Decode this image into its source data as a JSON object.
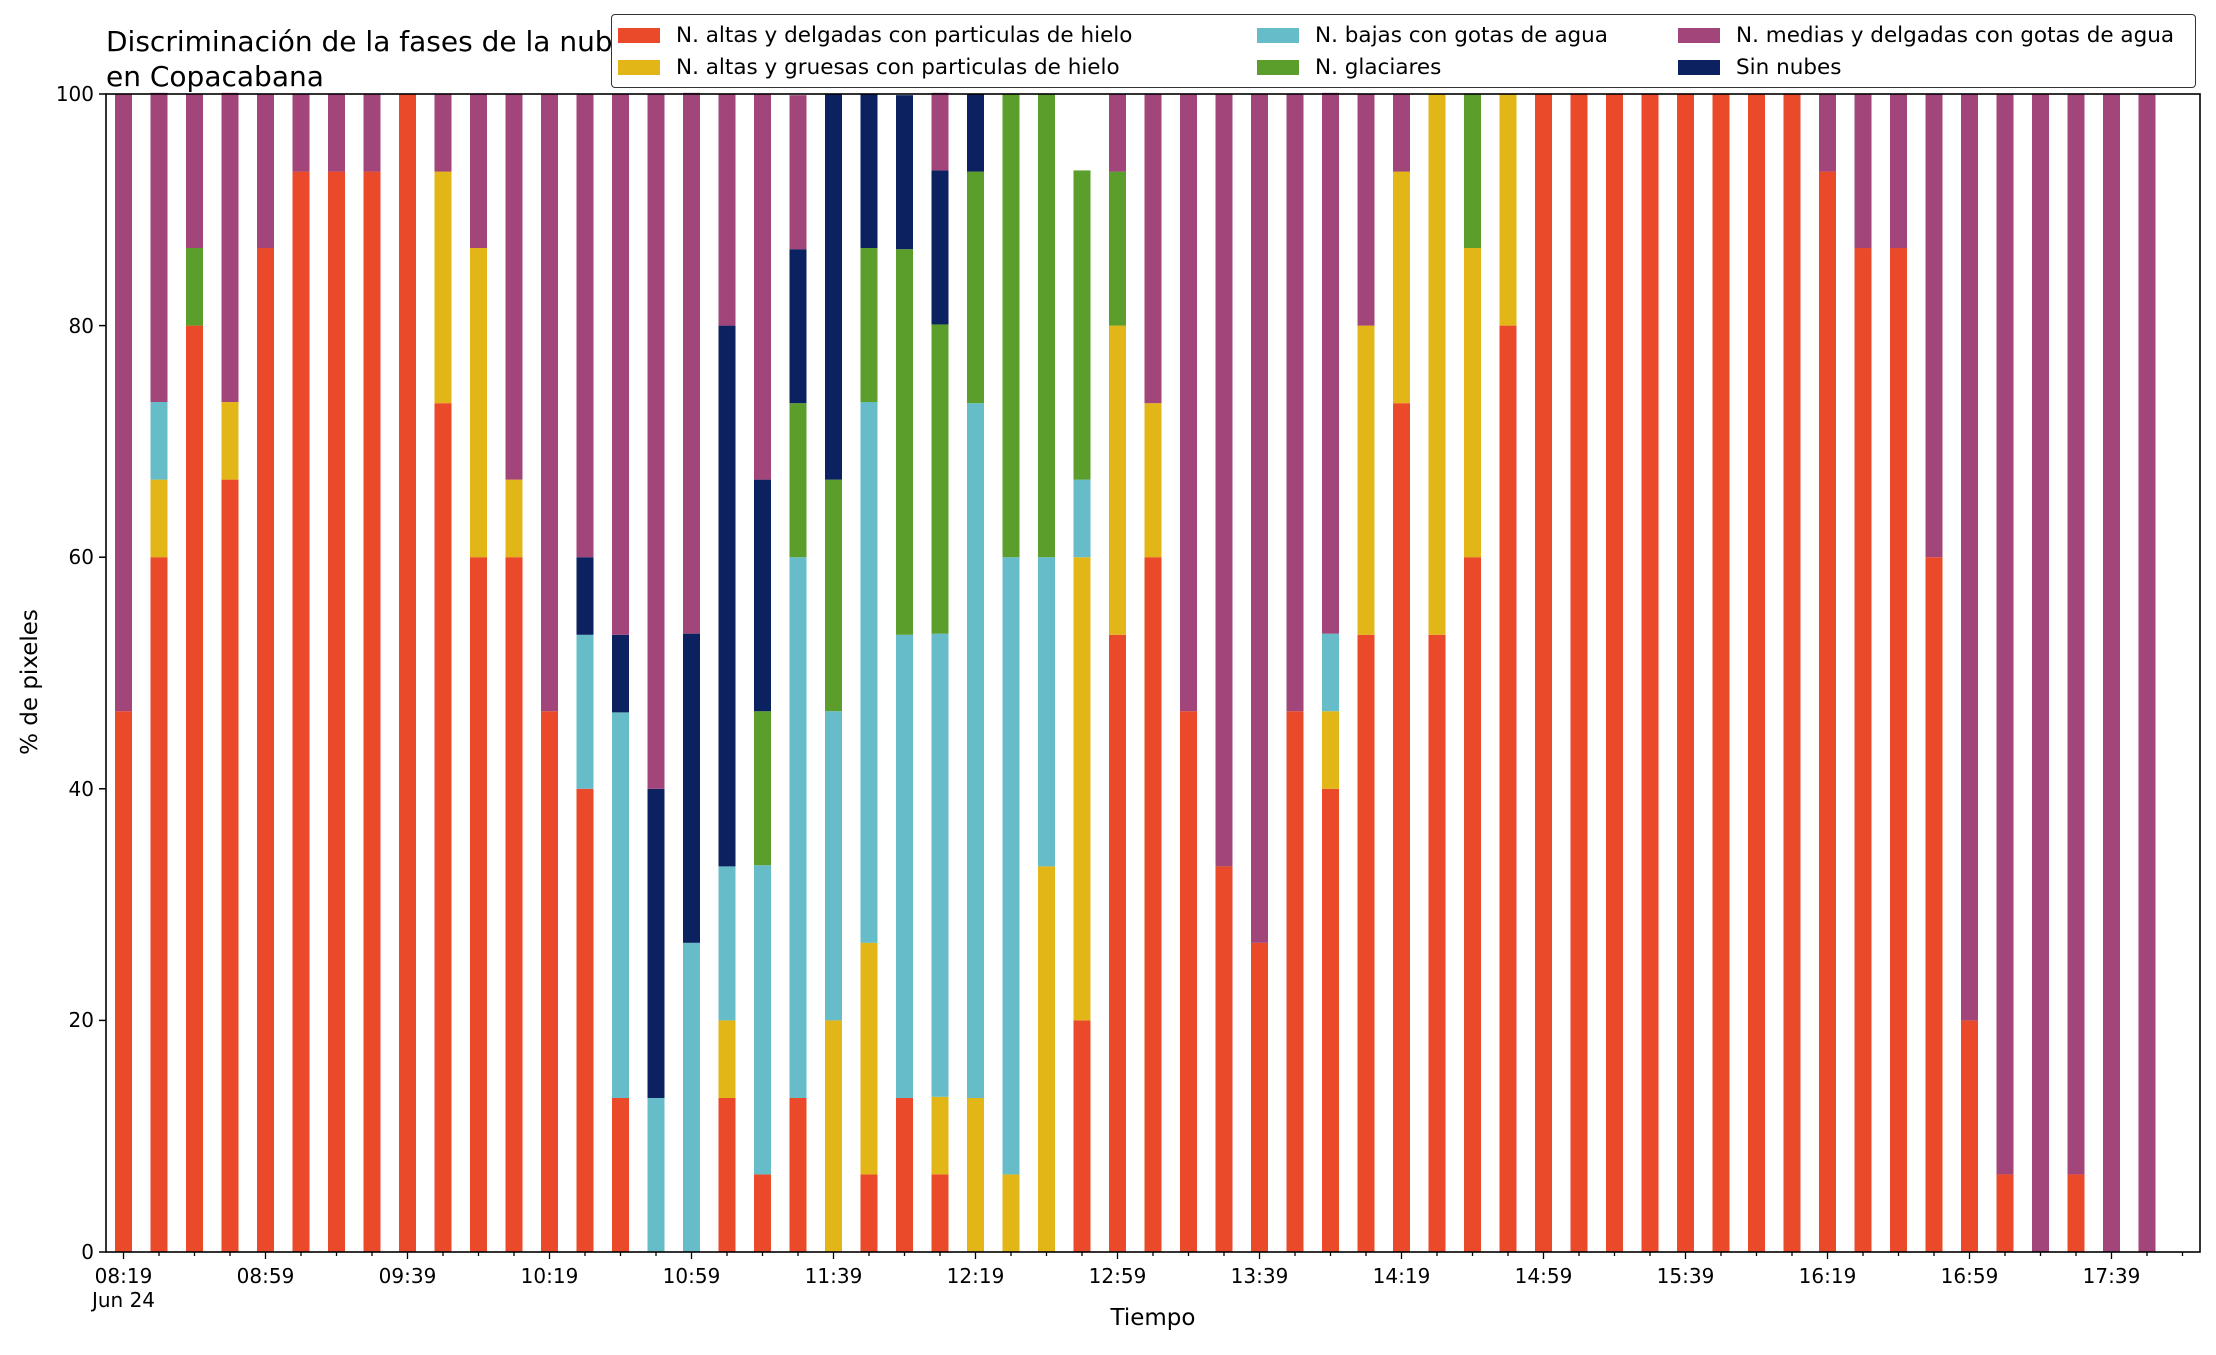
{
  "chart_data": {
    "type": "bar",
    "stacked": true,
    "title": "Discriminación de la fases de la nube en Copacabana",
    "xlabel": "Tiempo",
    "ylabel": "% de pixeles",
    "ylim": [
      0,
      100
    ],
    "yticks": [
      "0",
      "20",
      "40",
      "60",
      "80",
      "100"
    ],
    "x_tick_labels": [
      "08:19",
      "08:59",
      "09:39",
      "10:19",
      "10:59",
      "11:39",
      "12:19",
      "12:59",
      "13:39",
      "14:19",
      "14:59",
      "15:39",
      "16:19",
      "16:59",
      "17:39"
    ],
    "x_tick_sublabel": "Jun 24",
    "x_start": "08:19",
    "x_step_minutes": 10,
    "legend_position": "top",
    "series": [
      {
        "name": "N. altas y delgadas con particulas de hielo",
        "color": "#ea4a2a",
        "values": [
          46.7,
          60,
          80,
          66.7,
          86.7,
          93.3,
          93.3,
          93.3,
          100,
          73.3,
          60,
          60,
          46.7,
          40,
          13.3,
          0,
          0,
          13.3,
          6.7,
          13.3,
          0,
          6.7,
          13.3,
          6.7,
          0,
          0,
          0,
          20,
          53.3,
          60,
          46.7,
          33.3,
          26.7,
          46.7,
          40,
          53.3,
          73.3,
          53.3,
          60,
          80,
          100,
          100,
          100,
          100,
          100,
          100,
          100,
          100,
          93.3,
          86.7,
          86.7,
          60,
          20,
          6.7,
          0,
          6.7,
          0,
          0
        ]
      },
      {
        "name": "N. altas y gruesas con particulas de hielo",
        "color": "#e3b617",
        "values": [
          0,
          6.7,
          0,
          6.7,
          0,
          0,
          0,
          0,
          0,
          20,
          26.7,
          6.7,
          0,
          0,
          0,
          0,
          0,
          6.7,
          0,
          0,
          20,
          20,
          0,
          6.7,
          13.3,
          6.7,
          33.3,
          40,
          26.7,
          13.3,
          0,
          0,
          0,
          0,
          6.7,
          26.7,
          20,
          46.7,
          26.7,
          20,
          0,
          0,
          0,
          0,
          0,
          0,
          0,
          0,
          0,
          0,
          0,
          0,
          0,
          0,
          0,
          0,
          0,
          0
        ]
      },
      {
        "name": "N. bajas con gotas de agua",
        "color": "#66bcc9",
        "values": [
          0,
          6.7,
          0,
          0,
          0,
          0,
          0,
          0,
          0,
          0,
          0,
          0,
          0,
          13.3,
          33.3,
          13.3,
          26.7,
          13.3,
          26.7,
          46.7,
          26.7,
          46.7,
          40,
          40,
          60,
          53.3,
          26.7,
          6.7,
          0,
          0,
          0,
          0,
          0,
          0,
          6.7,
          0,
          0,
          0,
          0,
          0,
          0,
          0,
          0,
          0,
          0,
          0,
          0,
          0,
          0,
          0,
          0,
          0,
          0,
          0,
          0,
          0,
          0,
          0
        ]
      },
      {
        "name": "N. medias y delgadas con gotas de agua",
        "color": "#a2457a",
        "values": [
          53.3,
          26.7,
          13.3,
          26.7,
          13.3,
          6.7,
          6.7,
          6.7,
          0,
          6.7,
          13.3,
          33.3,
          53.3,
          40,
          46.7,
          60,
          46.7,
          20,
          33.3,
          13.3,
          0,
          0,
          0,
          6.7,
          0,
          0,
          0,
          0,
          6.7,
          26.7,
          53.3,
          66.7,
          73.3,
          53.3,
          46.7,
          20,
          6.7,
          0,
          0,
          0,
          0,
          0,
          0,
          0,
          0,
          0,
          0,
          0,
          6.7,
          13.3,
          13.3,
          40,
          80,
          93.3,
          100,
          93.3,
          100,
          100
        ]
      },
      {
        "name": "N. glaciares",
        "color": "#5b9e2c",
        "values": [
          0,
          0,
          6.7,
          0,
          0,
          0,
          0,
          0,
          0,
          0,
          0,
          0,
          0,
          0,
          0,
          0,
          0,
          0,
          13.3,
          13.3,
          20,
          13.3,
          33.3,
          26.7,
          20,
          40,
          40,
          26.7,
          13.3,
          0,
          0,
          0,
          0,
          0,
          0,
          0,
          0,
          0,
          13.3,
          0,
          0,
          0,
          0,
          0,
          0,
          0,
          0,
          0,
          0,
          0,
          0,
          0,
          0,
          0,
          0,
          0,
          0,
          0
        ]
      },
      {
        "name": "Sin nubes",
        "color": "#0b2160",
        "values": [
          0,
          0,
          0,
          0,
          0,
          0,
          0,
          0,
          0,
          0,
          0,
          0,
          0,
          6.7,
          6.7,
          26.7,
          26.7,
          46.7,
          20,
          13.3,
          33.3,
          13.3,
          13.3,
          13.3,
          6.7,
          0,
          0,
          0,
          0,
          0,
          0,
          0,
          0,
          0,
          0,
          0,
          0,
          0,
          0,
          0,
          0,
          0,
          0,
          0,
          0,
          0,
          0,
          0,
          0,
          0,
          0,
          0,
          0,
          0,
          0,
          0,
          0,
          0
        ]
      }
    ],
    "stack_order": [
      0,
      1,
      2,
      4,
      5,
      3
    ],
    "legend_order": [
      0,
      1,
      2,
      4,
      3,
      5
    ]
  }
}
